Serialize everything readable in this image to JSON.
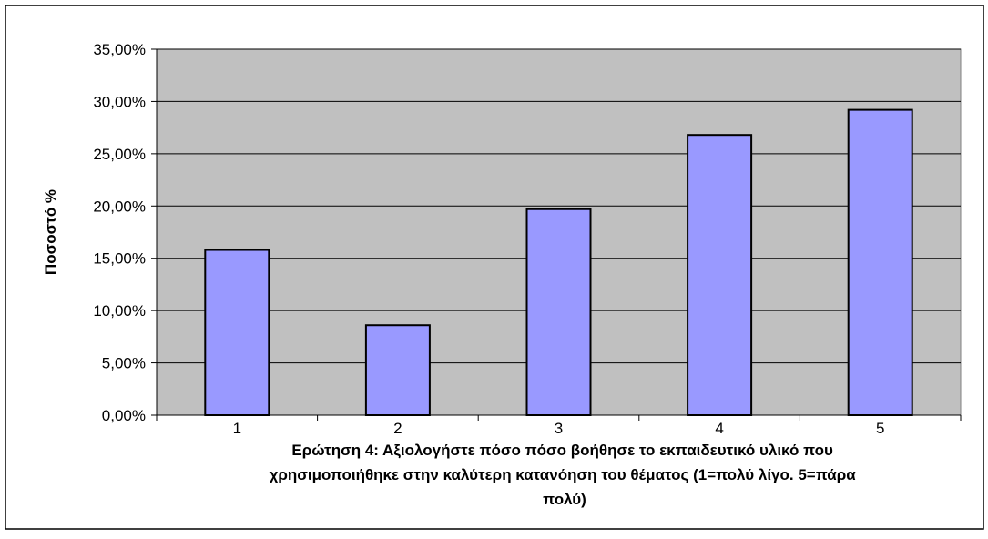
{
  "chart_data": {
    "type": "bar",
    "categories": [
      "1",
      "2",
      "3",
      "4",
      "5"
    ],
    "values": [
      15.8,
      8.6,
      19.7,
      26.8,
      29.2
    ],
    "value_unit": "%",
    "ylim": [
      0,
      35
    ],
    "ytick_values": [
      0,
      5,
      10,
      15,
      20,
      25,
      30,
      35
    ],
    "ytick_labels": [
      "0,00%",
      "5,00%",
      "10,00%",
      "15,00%",
      "20,00%",
      "25,00%",
      "30,00%",
      "35,00%"
    ],
    "xlabel_lines": [
      "Ερώτηση 4: Αξιολογήστε πόσο πόσο βοήθησε το εκπαιδευτικό υλικό που",
      "χρησιμοποιήθηκε στην καλύτερη κατανόηση του θέματος (1=πολύ λίγο. 5=πάρα",
      "πολύ)"
    ],
    "ylabel": "Ποσοστό %",
    "grid": true,
    "legend": "none",
    "colors": {
      "bar_fill": "#9999ff",
      "bar_stroke": "#000000",
      "plot_background": "#c0c0c0",
      "gridline": "#000000",
      "chart_border": "#000000"
    }
  }
}
